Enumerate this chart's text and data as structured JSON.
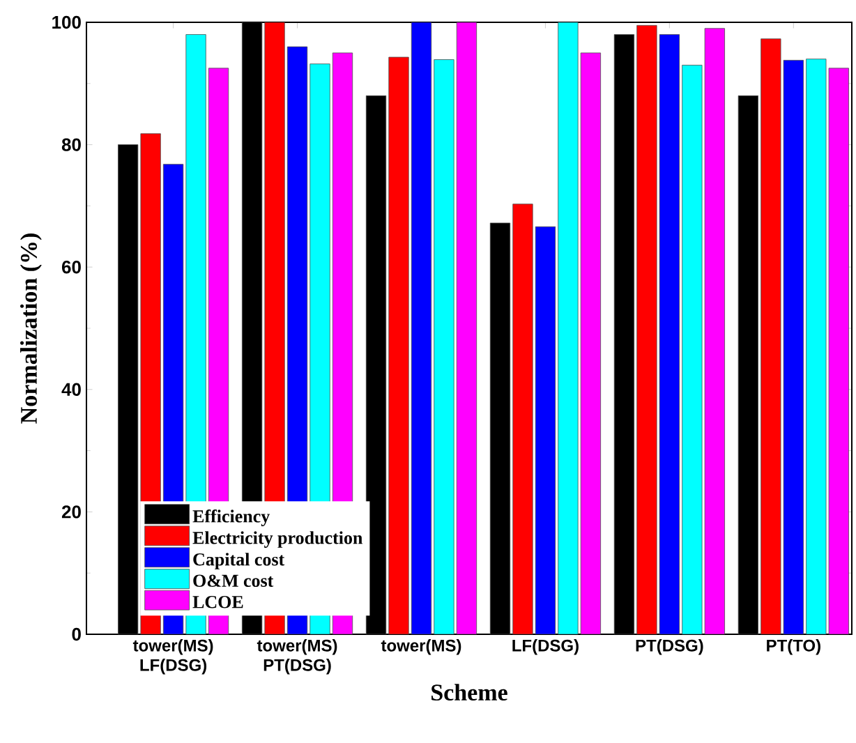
{
  "chart_data": {
    "type": "bar",
    "xlabel": "Scheme",
    "ylabel": "Normalization (%)",
    "categories": [
      "tower(MS) LF(DSG)",
      "tower(MS) PT(DSG)",
      "tower(MS)",
      "LF(DSG)",
      "PT(DSG)",
      "PT(TO)"
    ],
    "series": [
      {
        "name": "Efficiency",
        "color": "#000000",
        "values": [
          80,
          100,
          88,
          67.2,
          98,
          88
        ]
      },
      {
        "name": "Electricity production",
        "color": "#ff0000",
        "values": [
          81.8,
          100,
          94.3,
          70.3,
          99.5,
          97.3
        ]
      },
      {
        "name": "Capital cost",
        "color": "#0000ff",
        "values": [
          76.8,
          96,
          100,
          66.6,
          98,
          93.8
        ]
      },
      {
        "name": "O&M cost",
        "color": "#00ffff",
        "values": [
          98,
          93.2,
          93.9,
          100,
          93,
          94
        ]
      },
      {
        "name": "LCOE",
        "color": "#ff00ff",
        "values": [
          92.5,
          95,
          100,
          95,
          99,
          92.5
        ]
      }
    ],
    "ylim": [
      0,
      100
    ],
    "yticks": [
      0,
      20,
      40,
      60,
      80,
      100
    ],
    "grid": false,
    "legend": "bottom left"
  }
}
